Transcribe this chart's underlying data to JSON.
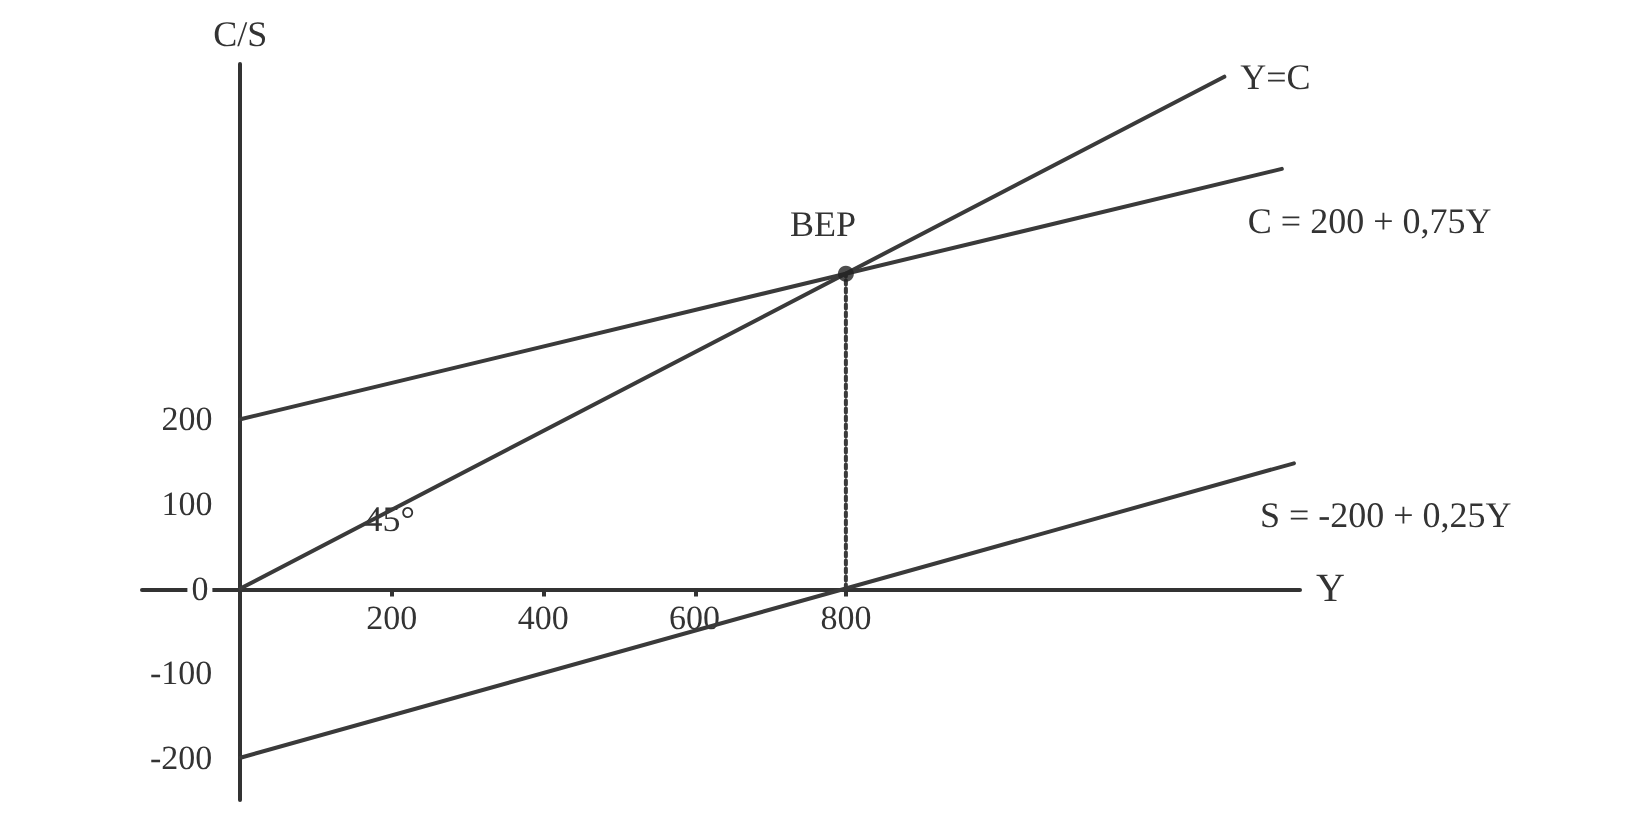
{
  "chart_data": {
    "type": "line",
    "xlabel": "Y",
    "ylabel": "C/S",
    "xlim": [
      -130,
      1400
    ],
    "ylim": [
      -250,
      620
    ],
    "xticks": [
      200,
      400,
      600,
      800
    ],
    "yticks": [
      -200,
      -100,
      0,
      100,
      200
    ],
    "marker": "none",
    "line_style": "solid",
    "series": [
      {
        "name": "Y=C",
        "color": "#3a3a3a",
        "x": [
          0,
          1300
        ],
        "values": [
          0,
          605
        ]
      },
      {
        "name": "C = 200 + 0,75Y",
        "color": "#3a3a3a",
        "x": [
          0,
          1376
        ],
        "values": [
          200,
          496
        ]
      },
      {
        "name": "S = -200 + 0,25Y",
        "color": "#3a3a3a",
        "x": [
          0,
          1392
        ],
        "values": [
          -200,
          148
        ]
      },
      {
        "type": "line",
        "line_style": "dotted",
        "color": "#3a3a3a",
        "x": [
          800,
          800
        ],
        "values": [
          0,
          372
        ]
      },
      {
        "type": "scatter",
        "marker": "circle",
        "color": "#222222",
        "x": [
          800
        ],
        "values": [
          372
        ]
      }
    ],
    "annotations": [
      {
        "text": "BEP",
        "x": 800,
        "y": 372
      },
      "45°"
    ]
  }
}
